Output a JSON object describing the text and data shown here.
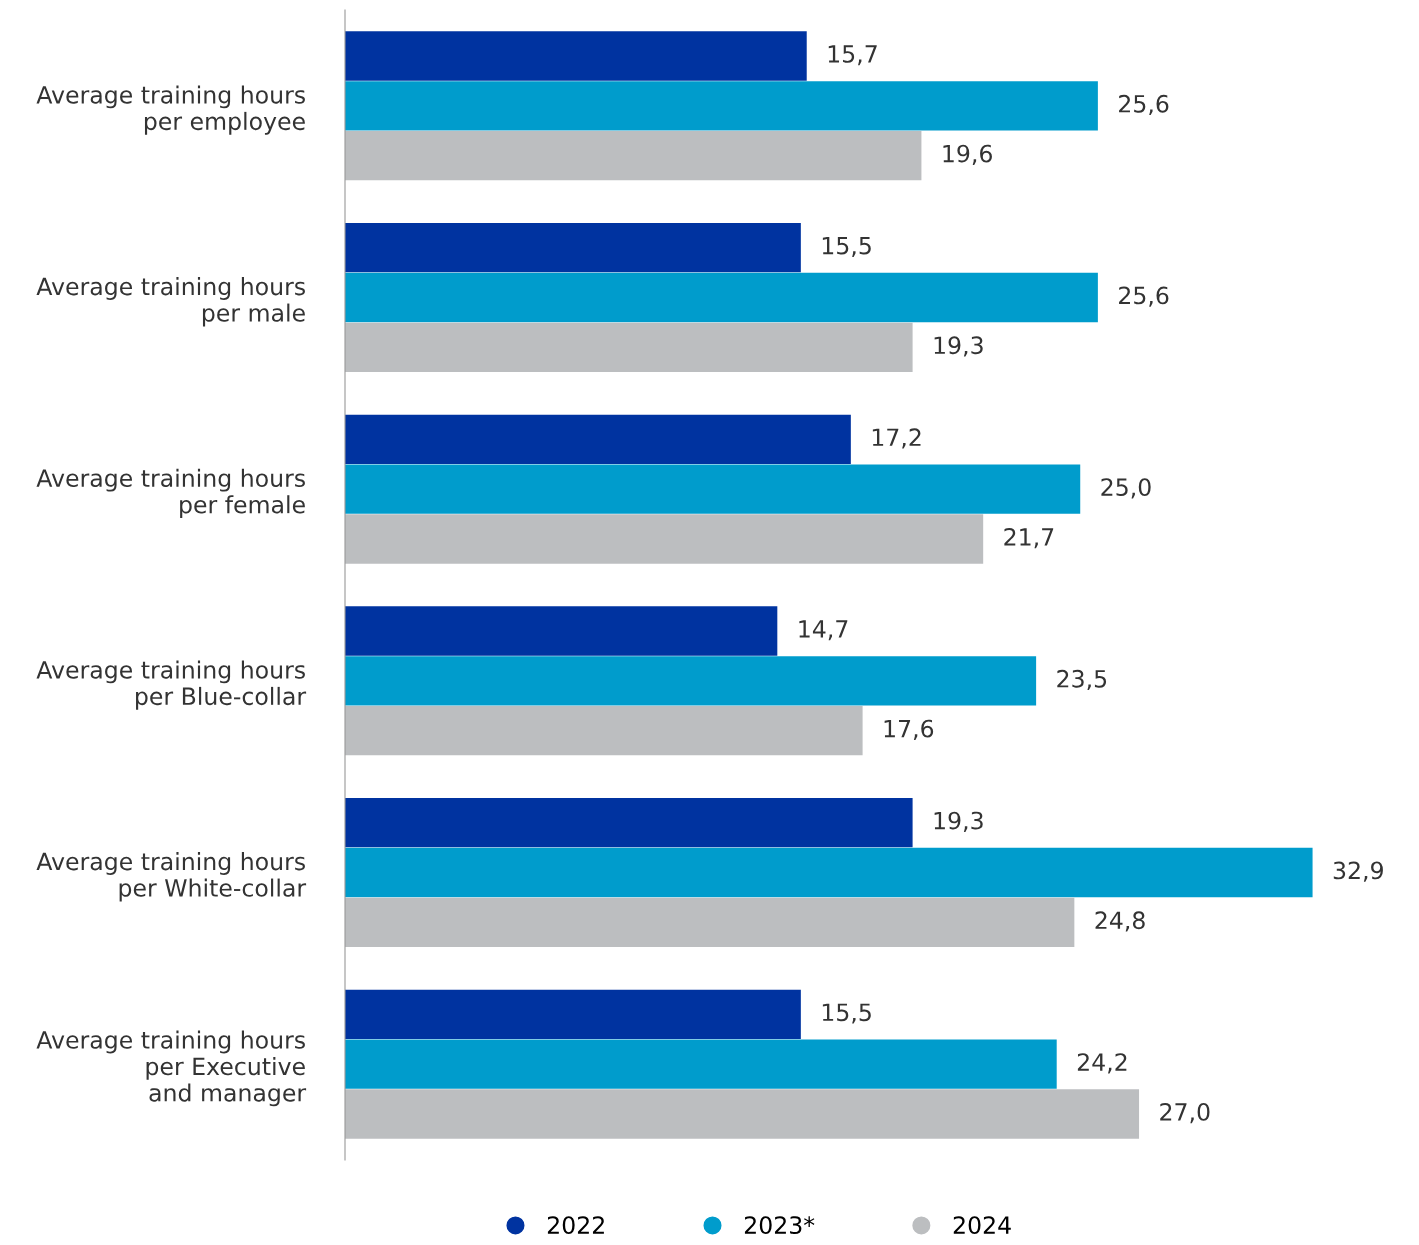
{
  "chart_data": {
    "type": "bar",
    "orientation": "horizontal",
    "tick_labels": "y",
    "grid": false,
    "legend": "bottom",
    "categories": [
      "Average training hours\nper employee",
      "Average training hours\nper male",
      "Average training hours\nper female",
      "Average training hours\nper Blue-collar",
      "Average training hours\nper White-collar",
      "Average training hours\nper Executive\nand manager"
    ],
    "series": [
      {
        "name": "2022",
        "color": "#0033a0",
        "values": [
          15.7,
          15.5,
          17.2,
          14.7,
          19.3,
          15.5
        ],
        "value_labels": [
          "15,7",
          "15,5",
          "17,2",
          "14,7",
          "19,3",
          "15,5"
        ]
      },
      {
        "name": "2023*",
        "color": "#009ccc",
        "values": [
          25.6,
          25.6,
          25.0,
          23.5,
          32.9,
          24.2
        ],
        "value_labels": [
          "25,6",
          "25,6",
          "25,0",
          "23,5",
          "32,9",
          "24,2"
        ]
      },
      {
        "name": "2024",
        "color": "#bcbec0",
        "values": [
          19.6,
          19.3,
          21.7,
          17.6,
          24.8,
          27.0
        ],
        "value_labels": [
          "19,6",
          "19,3",
          "21,7",
          "17,6",
          "24,8",
          "27,0"
        ]
      }
    ]
  }
}
